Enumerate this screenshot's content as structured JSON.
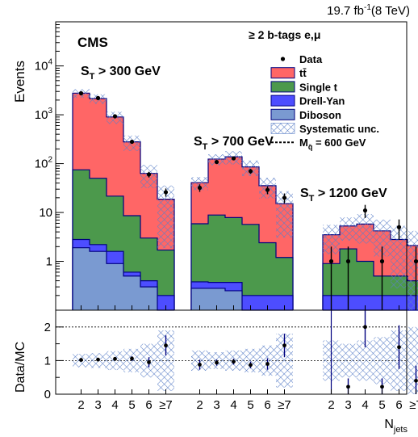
{
  "header": {
    "lumi": "19.7 fb",
    "lumi_sup": "-1",
    "energy": "(8 TeV)",
    "experiment": "CMS",
    "selection": "≥ 2 b-tags e,μ"
  },
  "colors": {
    "ttbar": "#ff6666",
    "single_t": "#4c994c",
    "drell_yan": "#4d4dff",
    "diboson": "#7a9ad1",
    "edge": "#00007f",
    "syst": "#5b7fc7"
  },
  "chart_data": [
    {
      "type": "bar",
      "stacked": true,
      "ylabel": "Events",
      "yscale": "log",
      "ylim": [
        0.1,
        80000
      ],
      "yticks": [
        {
          "v": 1,
          "label": "1"
        },
        {
          "v": 10,
          "label": "10"
        },
        {
          "v": 100,
          "label": "10",
          "sup": "2"
        },
        {
          "v": 1000,
          "label": "10",
          "sup": "3"
        },
        {
          "v": 10000,
          "label": "10",
          "sup": "4"
        }
      ],
      "region_labels": [
        {
          "main": "S",
          "sub": "T",
          "rest": " > 300 GeV"
        },
        {
          "main": "S",
          "sub": "T",
          "rest": " > 700 GeV"
        },
        {
          "main": "S",
          "sub": "T",
          "rest": " > 1200 GeV"
        }
      ],
      "legend": [
        {
          "key": "data",
          "label": "Data"
        },
        {
          "key": "ttbar",
          "label": "tt̄"
        },
        {
          "key": "single_t",
          "label": "Single t"
        },
        {
          "key": "drell_yan",
          "label": "Drell-Yan"
        },
        {
          "key": "diboson",
          "label": "Diboson"
        },
        {
          "key": "syst",
          "label": "Systematic unc."
        },
        {
          "key": "signal",
          "label": "M",
          "sub": "q̄",
          "rest": " = 600 GeV"
        }
      ],
      "legend_position": "top-right",
      "regions": [
        {
          "categories": [
            "2",
            "3",
            "4",
            "5",
            "6",
            "≥7"
          ],
          "diboson": [
            1.9,
            1.6,
            0.9,
            0.5,
            0.3,
            0.1
          ],
          "drell_yan": [
            0.9,
            0.6,
            0.7,
            0.1,
            0.1,
            0.1
          ],
          "single_t": [
            72,
            48,
            20,
            8,
            2.6,
            1.5
          ],
          "ttbar": [
            2700,
            2100,
            880,
            270,
            60,
            17
          ],
          "syst_rel": [
            0.2,
            0.22,
            0.28,
            0.35,
            0.5,
            0.9
          ],
          "data": [
            2750,
            2200,
            930,
            280,
            60,
            26
          ],
          "data_err": [
            52,
            47,
            30,
            17,
            8,
            5
          ]
        },
        {
          "categories": [
            "2",
            "3",
            "4",
            "5",
            "6",
            "≥7"
          ],
          "diboson": [
            0.28,
            0.28,
            0.25,
            0.1,
            0.1,
            0.1
          ],
          "drell_yan": [
            0.1,
            0.09,
            0.12,
            0.1,
            0.1,
            0.1
          ],
          "single_t": [
            5.5,
            8.5,
            7.5,
            5.5,
            2.2,
            1.0
          ],
          "ttbar": [
            35,
            115,
            130,
            80,
            33,
            14
          ],
          "syst_rel": [
            0.3,
            0.25,
            0.3,
            0.35,
            0.45,
            0.8
          ],
          "data": [
            32,
            108,
            128,
            70,
            29,
            20
          ],
          "data_err": [
            5.6,
            10,
            11,
            8,
            5.4,
            4.5
          ]
        },
        {
          "categories": [
            "2",
            "3",
            "4",
            "5",
            "6",
            "≥7"
          ],
          "diboson": [
            0.1,
            0.1,
            0.1,
            0.1,
            0.1,
            0.1
          ],
          "drell_yan": [
            0.1,
            0.1,
            0.1,
            0.1,
            0.1,
            0.1
          ],
          "single_t": [
            0.7,
            1.6,
            0.8,
            0.3,
            0.3,
            0.2
          ],
          "ttbar": [
            2.6,
            3.5,
            4.8,
            3.7,
            2.3,
            1.7
          ],
          "syst_rel": [
            0.6,
            0.5,
            0.6,
            0.7,
            0.9,
            1.0
          ],
          "data": [
            1,
            1,
            11,
            1,
            5,
            1
          ],
          "data_err": [
            1,
            1,
            3.3,
            1,
            2.2,
            1
          ]
        }
      ]
    },
    {
      "type": "scatter",
      "ylabel": "Data/MC",
      "xlabel": "N",
      "xlabel_sub": "jets",
      "ylim": [
        0,
        2.5
      ],
      "yticks": [
        0,
        1,
        2
      ],
      "dashed_lines": [
        1,
        2
      ],
      "regions": [
        {
          "ratio": [
            1.02,
            1.03,
            1.05,
            1.06,
            0.95,
            1.45
          ],
          "err": [
            0.03,
            0.03,
            0.04,
            0.07,
            0.15,
            0.3
          ],
          "syst": [
            0.2,
            0.22,
            0.28,
            0.35,
            0.5,
            0.9
          ]
        },
        {
          "ratio": [
            0.88,
            0.94,
            0.97,
            0.87,
            0.9,
            1.45
          ],
          "err": [
            0.15,
            0.09,
            0.09,
            0.1,
            0.17,
            0.35
          ],
          "syst": [
            0.3,
            0.25,
            0.3,
            0.35,
            0.45,
            0.8
          ]
        },
        {
          "ratio": [
            null,
            0.22,
            2.0,
            0.22,
            1.4,
            0.4
          ],
          "err": [
            0,
            0.25,
            0.6,
            0.25,
            0.65,
            0.45
          ],
          "syst": [
            0.6,
            0.5,
            0.6,
            0.7,
            0.9,
            1.0
          ]
        }
      ]
    }
  ]
}
